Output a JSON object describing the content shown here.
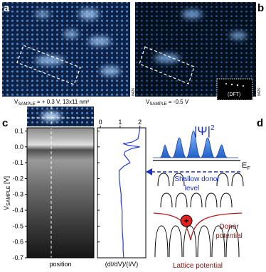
{
  "panels": {
    "a": "a",
    "b": "b",
    "c": "c",
    "d": "d"
  },
  "captions": {
    "a": {
      "v": "V",
      "sub": "SAMPLE",
      "rest": " = + 0.3 V, 13x11 nm²"
    },
    "b": {
      "v": "V",
      "sub": "SAMPLE",
      "rest": " = -0.5 V"
    },
    "id_a": "8426",
    "id_b": "8426",
    "dft": "(DFT)"
  },
  "chart_data": {
    "type": "line",
    "xlabel": "(dI/dV)/(I/V)",
    "image_xlabel": "position",
    "ylabel": {
      "v": "V",
      "sub": "SAMPLE",
      "rest": " [V]"
    },
    "xlim": [
      -0.15,
      2.3
    ],
    "xticks": [
      0,
      1,
      2
    ],
    "ylim": [
      -0.7,
      0.12
    ],
    "yticks": [
      0.1,
      {
        "value": 0,
        "label": "0.0"
      },
      -0.1,
      -0.2,
      -0.3,
      -0.4,
      -0.5,
      -0.6,
      -0.7
    ],
    "series": [
      {
        "color": "#2038d8",
        "y": [
          0.12,
          0.08,
          0.05,
          0.03,
          0.02,
          0.01,
          0,
          -0.01,
          -0.03,
          -0.05,
          -0.08,
          -0.1,
          -0.12,
          -0.15,
          -0.2,
          -0.25,
          -0.3,
          -0.35,
          -0.4,
          -0.45,
          -0.5,
          -0.55,
          -0.6,
          -0.65,
          -0.7
        ],
        "values": [
          2.0,
          1.95,
          1.9,
          1.6,
          1.15,
          1.4,
          2.0,
          1.6,
          1.25,
          1.2,
          1.4,
          1.5,
          1.2,
          0.95,
          0.95,
          1.0,
          1.05,
          1.05,
          1.1,
          1.1,
          1.1,
          1.12,
          1.15,
          1.15,
          1.18
        ]
      }
    ]
  },
  "diagram": {
    "psi": "|Ψ|",
    "psi_sup": "2",
    "ef": "E",
    "ef_sub": "F",
    "shallow1": "Shallow donor",
    "shallow2": "level",
    "donor1": "Donor",
    "donor2": "potential",
    "plus": "+",
    "lattice": "Lattice potential"
  }
}
